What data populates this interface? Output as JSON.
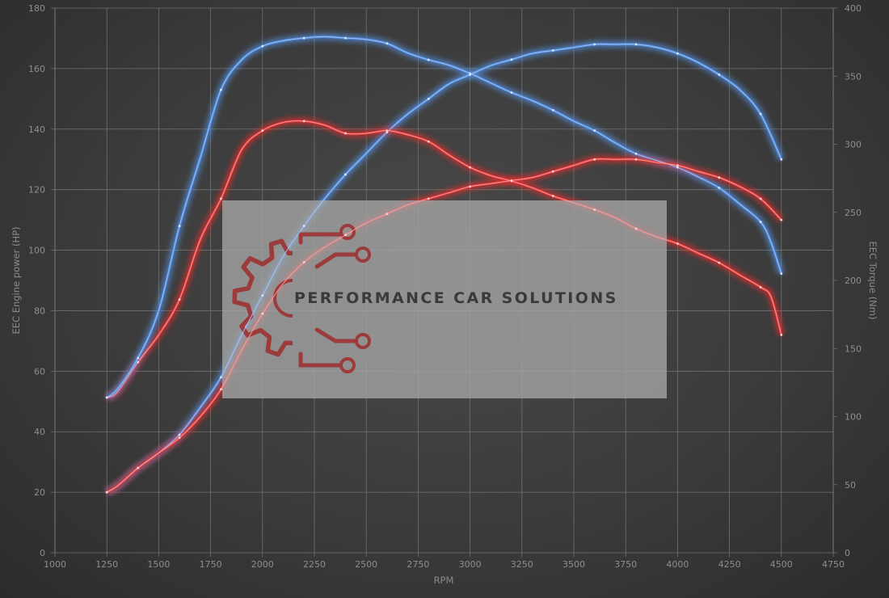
{
  "chart_data": {
    "type": "line",
    "xlabel": "RPM",
    "ylabel_left": "EEC Engine power (HP)",
    "ylabel_right": "EEC Torque (Nm)",
    "xlim": [
      1000,
      4750
    ],
    "ylim_left": [
      0,
      180
    ],
    "ylim_right": [
      0,
      400
    ],
    "x_ticks": [
      1000,
      1250,
      1500,
      1750,
      2000,
      2250,
      2500,
      2750,
      3000,
      3250,
      3500,
      3750,
      4000,
      4250,
      4500,
      4750
    ],
    "y_left_ticks": [
      0,
      20,
      40,
      60,
      80,
      100,
      120,
      140,
      160,
      180
    ],
    "y_right_ticks": [
      0,
      50,
      100,
      150,
      200,
      250,
      300,
      350,
      400
    ],
    "grid": true,
    "series": [
      {
        "axis": "left",
        "color": "#4f86d0",
        "x": [
          1250,
          1300,
          1400,
          1500,
          1600,
          1700,
          1800,
          1900,
          2000,
          2100,
          2200,
          2300,
          2400,
          2500,
          2600,
          2700,
          2800,
          2900,
          3000,
          3100,
          3200,
          3300,
          3400,
          3500,
          3600,
          3700,
          3800,
          3900,
          4000,
          4100,
          4200,
          4300,
          4400,
          4500
        ],
        "y": [
          20,
          22,
          28,
          33,
          39,
          48,
          58,
          72,
          85,
          98,
          108,
          117,
          125,
          132,
          139,
          145,
          150,
          155,
          158,
          161,
          163,
          165,
          166,
          167,
          168,
          168,
          168,
          167,
          165,
          162,
          158,
          153,
          145,
          130
        ]
      },
      {
        "axis": "right",
        "color": "#d63a3a",
        "x": [
          1250,
          1300,
          1400,
          1500,
          1600,
          1700,
          1800,
          1900,
          2000,
          2100,
          2200,
          2300,
          2400,
          2500,
          2600,
          2700,
          2800,
          2900,
          3000,
          3100,
          3200,
          3300,
          3400,
          3500,
          3600,
          3700,
          3800,
          3900,
          4000,
          4100,
          4200,
          4300,
          4400,
          4450,
          4500
        ],
        "y": [
          114,
          118,
          140,
          160,
          186,
          230,
          260,
          296,
          310,
          316,
          317,
          314,
          308,
          308,
          310,
          307,
          302,
          292,
          283,
          277,
          273,
          268,
          262,
          257,
          252,
          246,
          238,
          232,
          227,
          220,
          213,
          204,
          195,
          188,
          160
        ]
      },
      {
        "axis": "right",
        "color": "#4f86d0",
        "x": [
          1250,
          1300,
          1400,
          1500,
          1600,
          1700,
          1800,
          1900,
          2000,
          2100,
          2200,
          2300,
          2400,
          2500,
          2600,
          2700,
          2800,
          2900,
          3000,
          3100,
          3200,
          3300,
          3400,
          3500,
          3600,
          3700,
          3800,
          3900,
          4000,
          4100,
          4200,
          4300,
          4400,
          4450,
          4500
        ],
        "y": [
          114,
          120,
          143,
          178,
          240,
          290,
          340,
          362,
          372,
          376,
          378,
          379,
          378,
          377,
          374,
          367,
          362,
          358,
          352,
          345,
          338,
          332,
          325,
          317,
          310,
          301,
          293,
          288,
          283,
          276,
          268,
          256,
          243,
          228,
          205
        ]
      },
      {
        "axis": "left",
        "color": "#d63a3a",
        "x": [
          1250,
          1300,
          1400,
          1500,
          1600,
          1700,
          1800,
          1900,
          2000,
          2100,
          2200,
          2300,
          2400,
          2500,
          2600,
          2700,
          2800,
          2900,
          3000,
          3100,
          3200,
          3300,
          3400,
          3500,
          3600,
          3700,
          3800,
          3900,
          4000,
          4100,
          4200,
          4300,
          4400,
          4500
        ],
        "y": [
          20,
          22,
          28,
          33,
          38,
          45,
          54,
          67,
          79,
          89,
          96,
          101,
          105,
          109,
          112,
          115,
          117,
          119,
          121,
          122,
          123,
          124,
          126,
          128,
          130,
          130,
          130,
          129,
          128,
          126,
          124,
          121,
          117,
          110
        ]
      }
    ]
  },
  "watermark": {
    "text": "PERFORMANCE CAR SOLUTIONS",
    "logo_color": "#9b3b3b"
  }
}
